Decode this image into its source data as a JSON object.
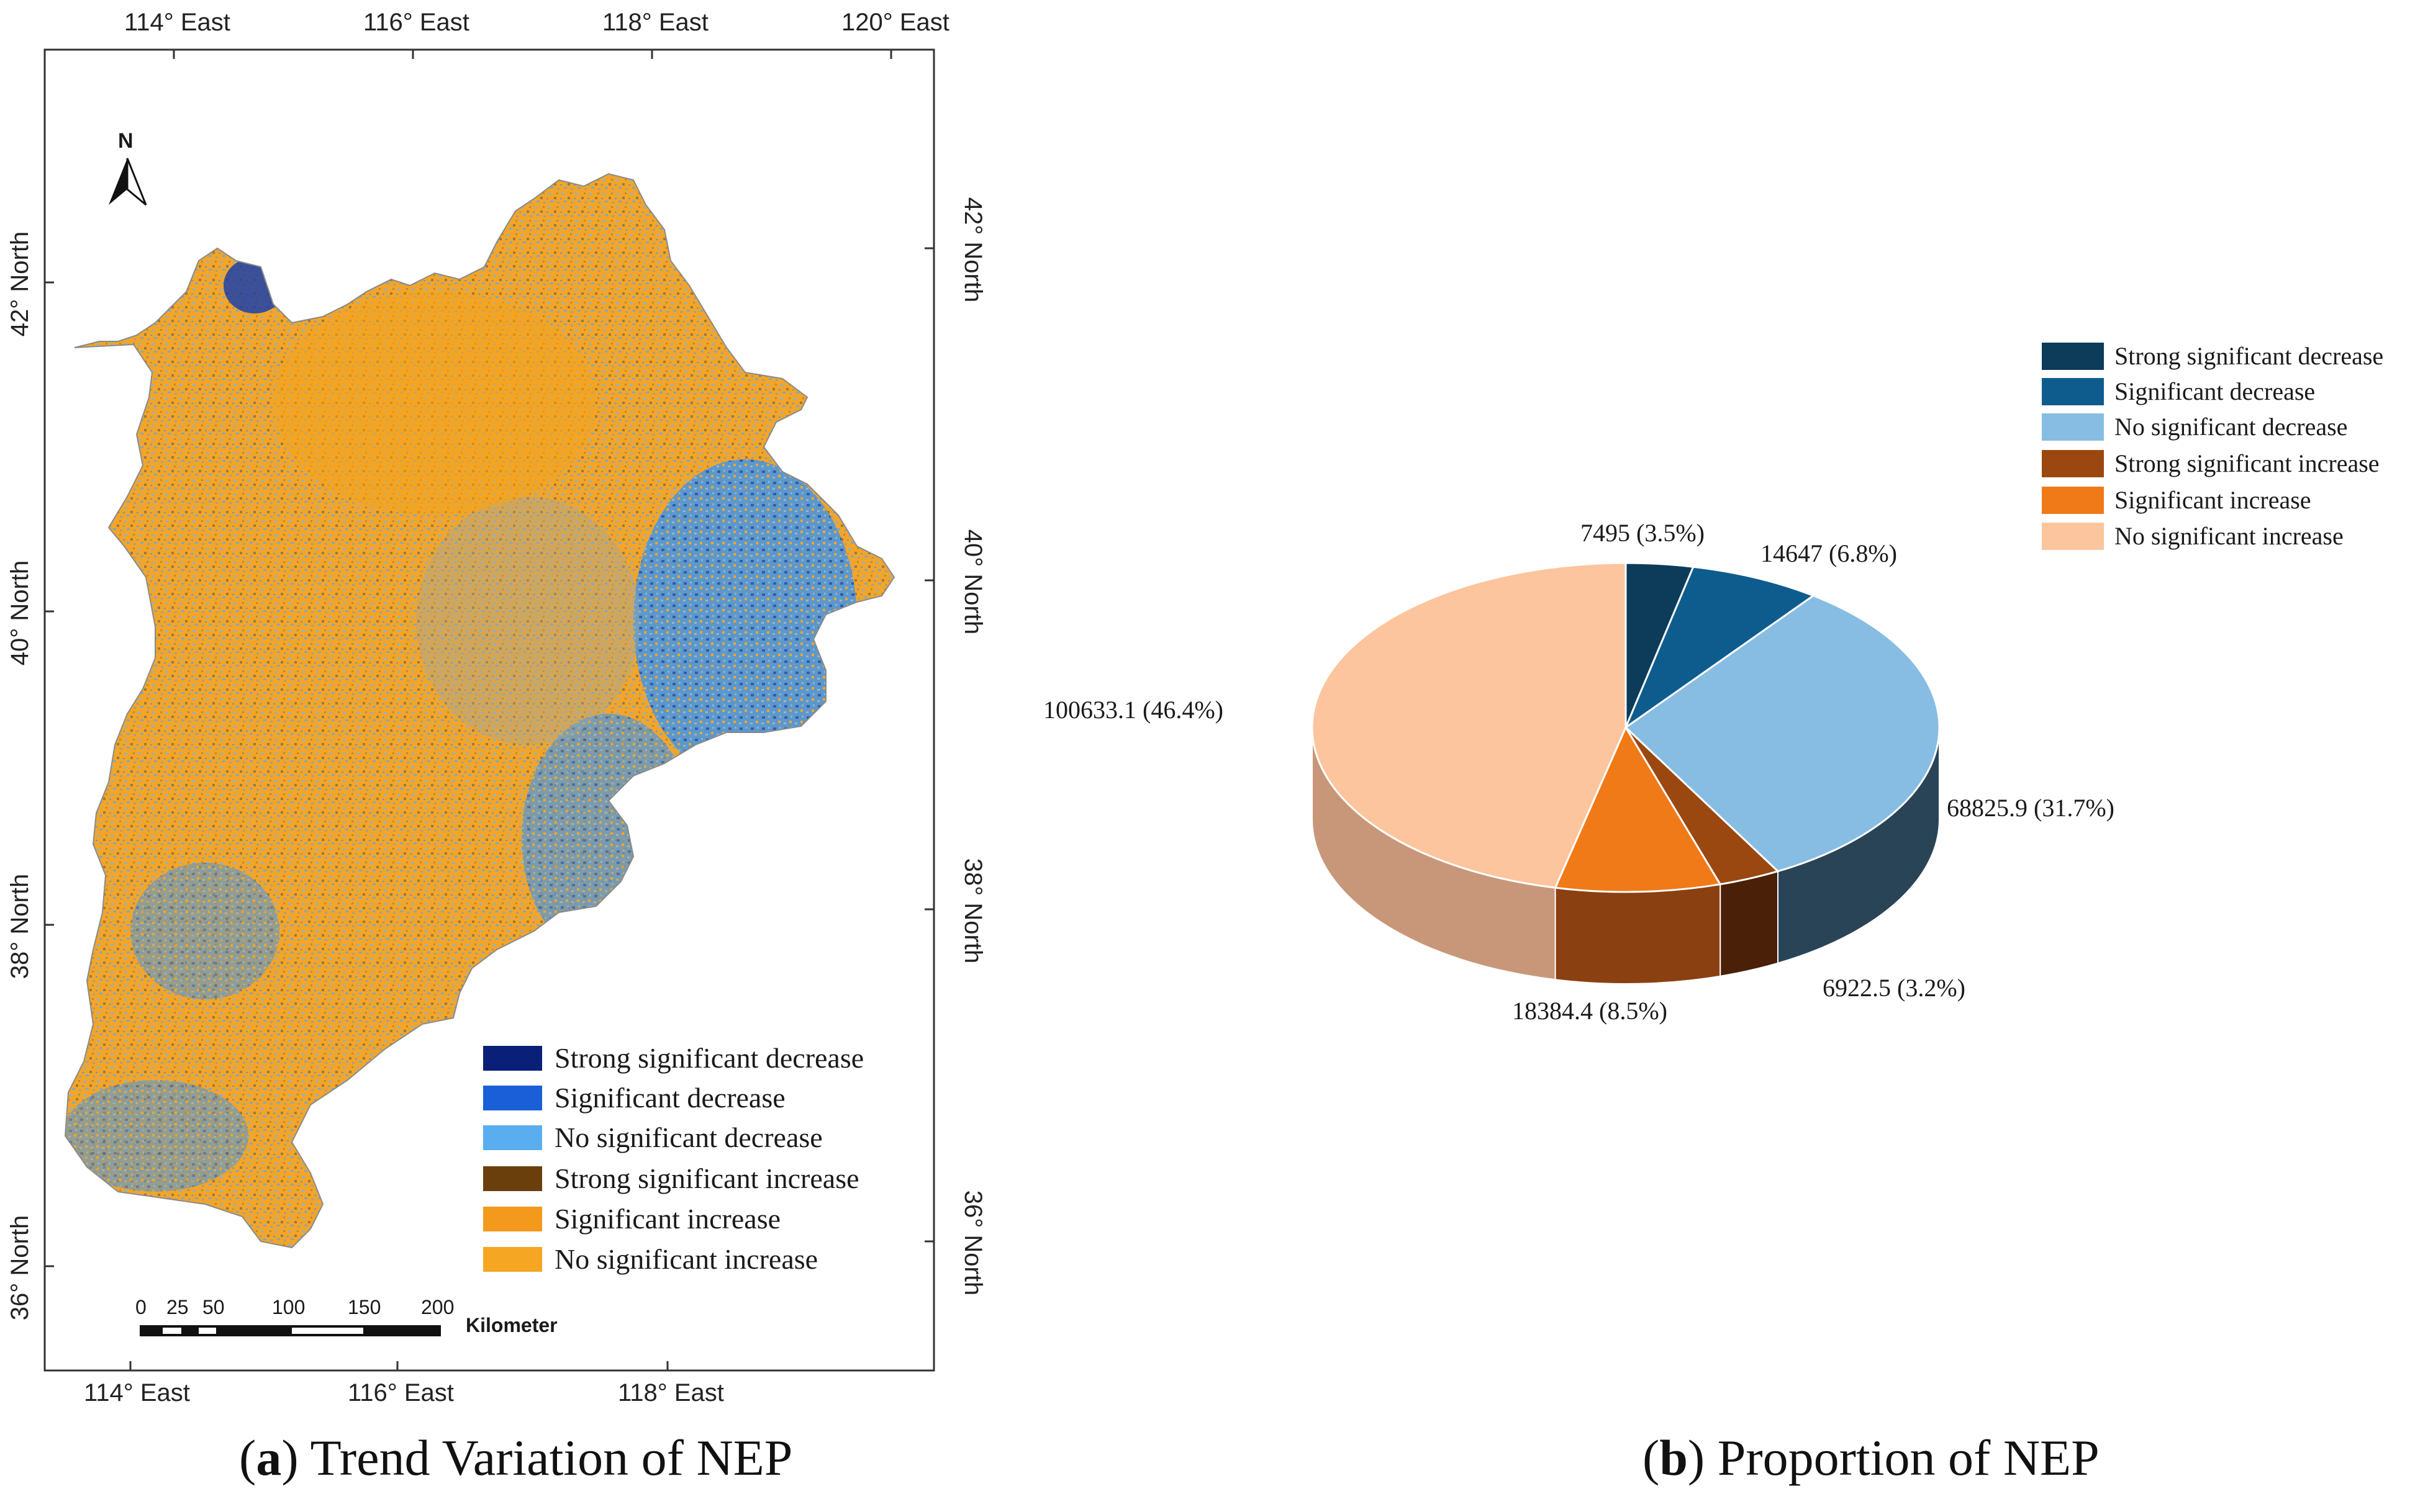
{
  "map": {
    "top_longitudes": [
      "114° East",
      "116° East",
      "118° East",
      "120° East"
    ],
    "bottom_longitudes": [
      "114° East",
      "116° East",
      "118° East"
    ],
    "left_latitudes": [
      "42° North",
      "40° North",
      "38° North",
      "36° North"
    ],
    "right_latitudes": [
      "42° North",
      "40° North",
      "38° North",
      "36° North"
    ],
    "north_label": "N",
    "scalebar": {
      "ticks": [
        "0",
        "25",
        "50",
        "100",
        "150",
        "200"
      ],
      "unit": "Kilometer"
    },
    "legend": [
      {
        "label": "Strong significant decrease",
        "color": "#0a1f78"
      },
      {
        "label": "Significant decrease",
        "color": "#1a5fd8"
      },
      {
        "label": "No significant decrease",
        "color": "#5aaef0"
      },
      {
        "label": "Strong significant increase",
        "color": "#6b3f0c"
      },
      {
        "label": "Significant increase",
        "color": "#f39a1c"
      },
      {
        "label": "No significant increase",
        "color": "#f5a623"
      }
    ],
    "caption": {
      "letter": "a",
      "text": " Trend Variation of NEP"
    }
  },
  "chart_data": {
    "type": "pie",
    "title": "",
    "legend_position": "top-right",
    "caption": {
      "letter": "b",
      "text": " Proportion of NEP"
    },
    "slices": [
      {
        "name": "Strong significant decrease",
        "value": 7495,
        "percent": 3.5,
        "label": "7495 (3.5%)",
        "color": "#0d3b5a",
        "side": "#0a2c44"
      },
      {
        "name": "Significant decrease",
        "value": 14647,
        "percent": 6.8,
        "label": "14647 (6.8%)",
        "color": "#0e5c8e",
        "side": "#0b476d"
      },
      {
        "name": "No significant decrease",
        "value": 68825.9,
        "percent": 31.7,
        "label": "68825.9 (31.7%)",
        "color": "#87bde3",
        "side": "#2a4457"
      },
      {
        "name": "Strong significant increase",
        "value": 6922.5,
        "percent": 3.2,
        "label": "6922.5 (3.2%)",
        "color": "#9a4810",
        "side": "#4a2008"
      },
      {
        "name": "Significant increase",
        "value": 18384.4,
        "percent": 8.5,
        "label": "18384.4 (8.5%)",
        "color": "#f07a18",
        "side": "#8a4010"
      },
      {
        "name": "No significant increase",
        "value": 100633.1,
        "percent": 46.4,
        "label": "100633.1 (46.4%)",
        "color": "#fcc59e",
        "side": "#c8977a"
      }
    ]
  }
}
